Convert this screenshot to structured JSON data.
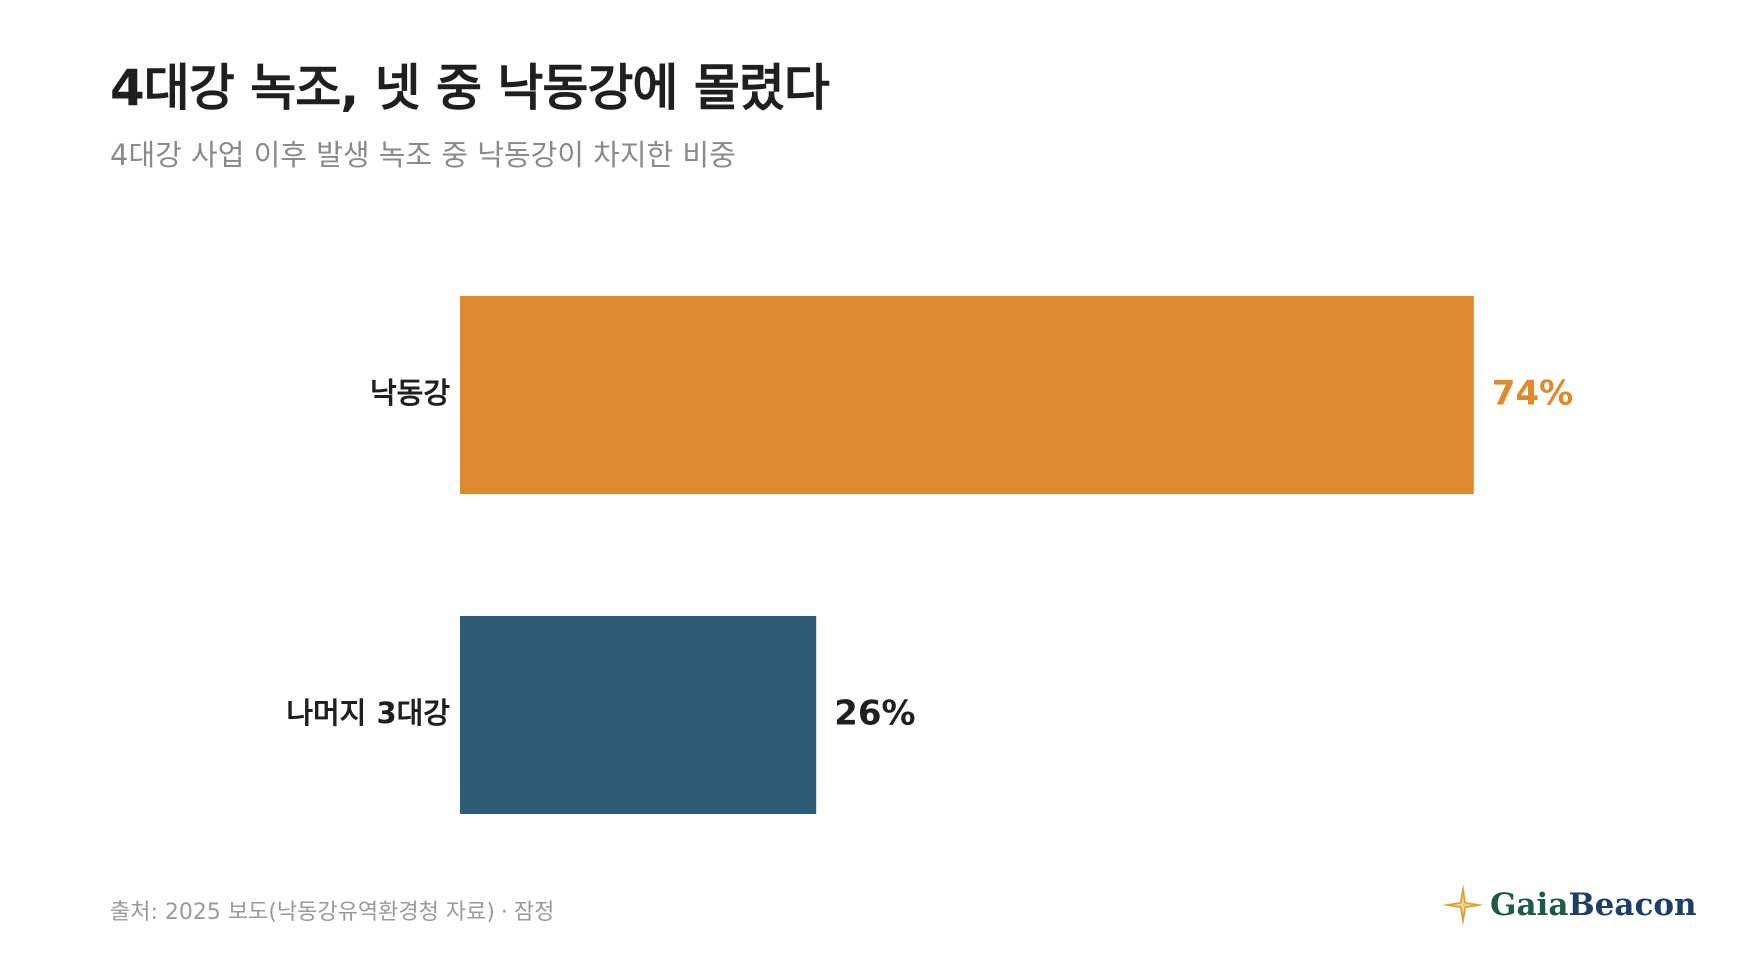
{
  "header": {
    "title": "4대강 녹조, 넷 중 낙동강에 몰렸다",
    "subtitle": "4대강 사업 이후 발생 녹조 중 낙동강이 차지한 비중"
  },
  "chart_data": {
    "type": "bar",
    "orientation": "horizontal",
    "categories": [
      "낙동강",
      "나머지 3대강"
    ],
    "values": [
      74,
      26
    ],
    "value_labels": [
      "74%",
      "26%"
    ],
    "unit": "%",
    "xlim": [
      0,
      100
    ],
    "grid": false,
    "legend": "none",
    "colors": [
      "#DE8A2E",
      "#2E5B78"
    ],
    "value_label_colors": [
      "#DE8A2E",
      "#1f1f1f"
    ]
  },
  "footer": {
    "source": "출처: 2025 보도(낙동강유역환경청 자료)",
    "separator": "·",
    "note": "잠정"
  },
  "logo": {
    "text_part1": "Gaia",
    "text_part2": "Beacon",
    "icon": "compass-star-icon",
    "colors": {
      "gaia": "#1f5a45",
      "beacon": "#1d3f63",
      "star": "#d9a035"
    }
  }
}
